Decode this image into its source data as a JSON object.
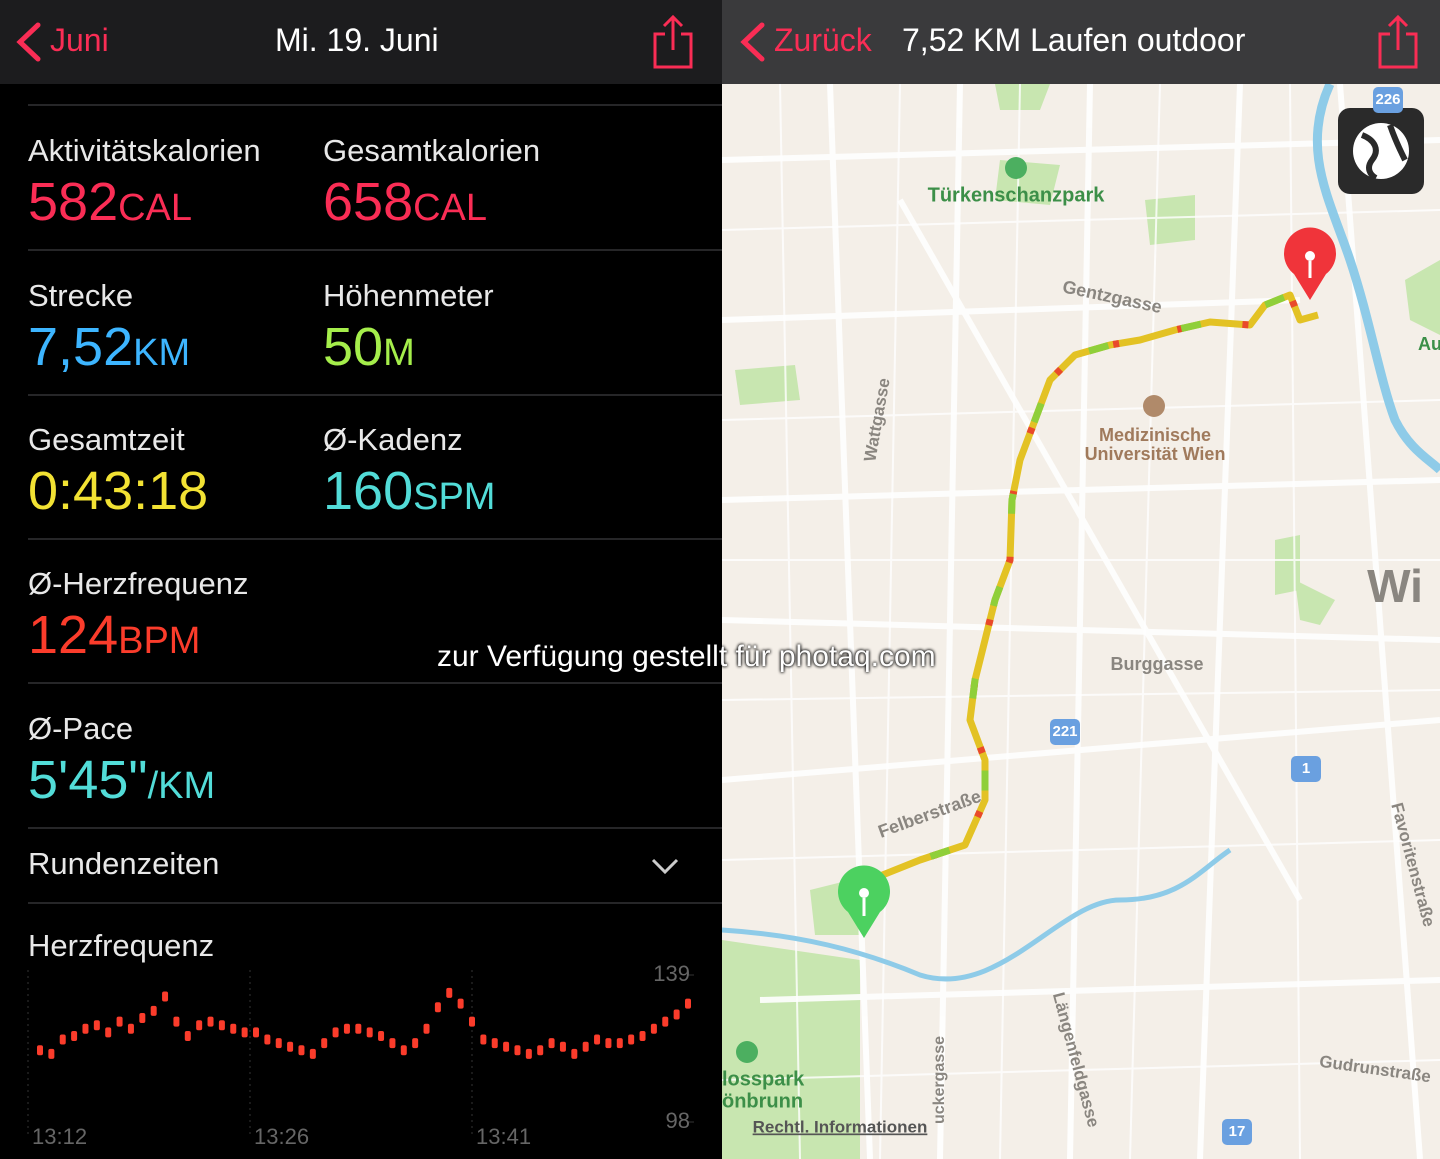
{
  "left": {
    "nav": {
      "back": "Juni",
      "title": "Mi. 19. Juni"
    },
    "rows": [
      [
        {
          "label": "Aktivitätskalorien",
          "value": "582",
          "unit": "CAL",
          "color": "#fa2d55"
        },
        {
          "label": "Gesamtkalorien",
          "value": "658",
          "unit": "CAL",
          "color": "#fa2d55"
        }
      ],
      [
        {
          "label": "Strecke",
          "value": "7,52",
          "unit": "KM",
          "color": "#3db5ff"
        },
        {
          "label": "Höhenmeter",
          "value": "50",
          "unit": "M",
          "color": "#a5ee4b"
        }
      ],
      [
        {
          "label": "Gesamtzeit",
          "value": "0:43:18",
          "unit": "",
          "color": "#f2e233"
        },
        {
          "label": "Ø-Kadenz",
          "value": "160",
          "unit": "SPM",
          "color": "#52dcd8"
        }
      ],
      [
        {
          "label": "Ø-Herzfrequenz",
          "value": "124",
          "unit": "BPM",
          "color": "#fb3c2b"
        }
      ],
      [
        {
          "label": "Ø-Pace",
          "value": "5'45\"",
          "unit": "/KM",
          "color": "#52dcd8"
        }
      ]
    ],
    "laps": "Rundenzeiten",
    "heart_rate": {
      "type": "bar",
      "title": "Herzfrequenz",
      "color": "#fb3c2b",
      "ylim": [
        98,
        139
      ],
      "yticks": [
        139,
        98
      ],
      "xlabels": [
        "13:12",
        "13:26",
        "13:41"
      ],
      "values": [
        118,
        117,
        121,
        122,
        124,
        125,
        123,
        126,
        124,
        127,
        129,
        133,
        126,
        122,
        125,
        126,
        125,
        124,
        123,
        123,
        121,
        120,
        119,
        118,
        117,
        120,
        123,
        124,
        124,
        123,
        122,
        120,
        118,
        120,
        124,
        130,
        134,
        131,
        126,
        121,
        120,
        119,
        118,
        117,
        118,
        120,
        119,
        117,
        119,
        121,
        120,
        120,
        121,
        122,
        124,
        126,
        128,
        131
      ]
    }
  },
  "right": {
    "nav": {
      "back": "Zurück",
      "title": "7,52 KM Laufen outdoor"
    },
    "map_labels": [
      "Türkenschanzpark",
      "Gentzgasse",
      "Wattgasse",
      "Medizinische",
      "Universität Wien",
      "Burggasse",
      "Felberstraße",
      "Wi",
      "Au",
      "Favoritenstraße",
      "Längenfeldgasse",
      "Gudrunstraße",
      "losspark",
      "önbrunn",
      "uckergasse",
      "Rechtl. Informationen"
    ],
    "shields": [
      "221",
      "1",
      "17",
      "226"
    ]
  },
  "watermark": "zur Verfügung gestellt für photaq.com"
}
